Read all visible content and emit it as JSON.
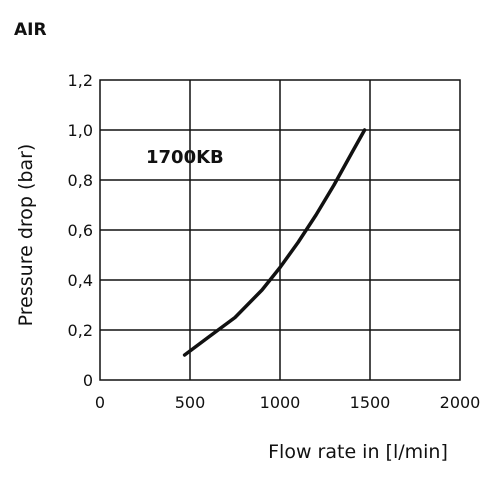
{
  "chart_data": {
    "type": "line",
    "title": "AIR",
    "xlabel": "Flow rate in [l/min]",
    "ylabel": "Pressure drop (bar)",
    "xlim": [
      0,
      2000
    ],
    "ylim": [
      0,
      1.2
    ],
    "x_ticks": [
      "0",
      "500",
      "1000",
      "1500",
      "2000"
    ],
    "y_ticks": [
      "0",
      "0,2",
      "0,4",
      "0,6",
      "0,8",
      "1,0",
      "1,2"
    ],
    "grid": true,
    "annotation": "1700KB",
    "series": [
      {
        "color": "#111111",
        "x": [
          470,
          600,
          750,
          900,
          1000,
          1100,
          1200,
          1300,
          1400,
          1470
        ],
        "y": [
          0.1,
          0.17,
          0.25,
          0.36,
          0.45,
          0.55,
          0.66,
          0.78,
          0.91,
          1.0
        ]
      }
    ]
  }
}
